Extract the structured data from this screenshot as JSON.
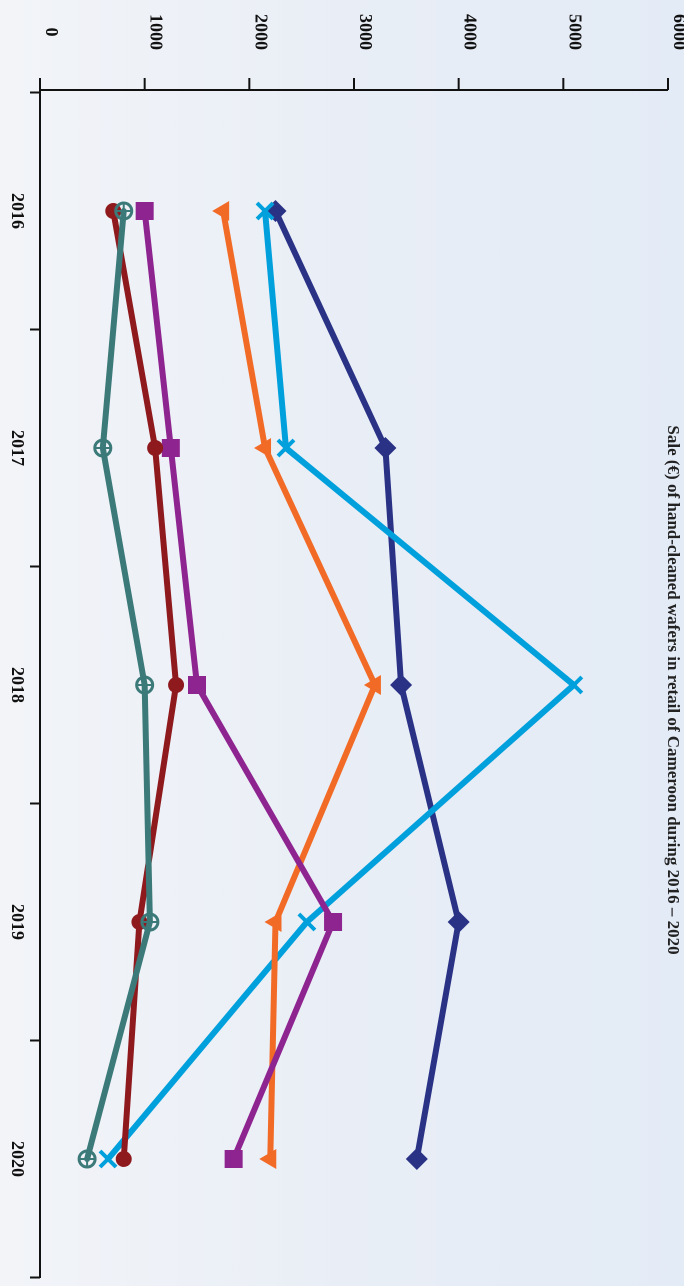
{
  "chart_data": {
    "type": "line",
    "title": "Sale (€) of hand-cleaned wafers in retail of Cameroon during 2016 – 2020",
    "xlabel": "",
    "ylabel": "",
    "categories": [
      "2016",
      "2017",
      "2018",
      "2019",
      "2020"
    ],
    "y_ticks": [
      "0",
      "1000",
      "2000",
      "3000",
      "4000",
      "5000",
      "6000"
    ],
    "ylim": [
      0,
      6000
    ],
    "grid": false,
    "legend": "none",
    "series": [
      {
        "color": "#2a3286",
        "marker": "diamond",
        "values": [
          2250,
          3300,
          3450,
          4000,
          3600
        ]
      },
      {
        "color": "#00a0dc",
        "marker": "x",
        "values": [
          2150,
          2350,
          5100,
          2550,
          650
        ]
      },
      {
        "color": "#f26b26",
        "marker": "triangle",
        "values": [
          1750,
          2150,
          3200,
          2250,
          2200
        ]
      },
      {
        "color": "#8e2490",
        "marker": "square",
        "values": [
          1000,
          1250,
          1500,
          2800,
          1850
        ]
      },
      {
        "color": "#8e1a1e",
        "marker": "circle",
        "values": [
          700,
          1100,
          1300,
          950,
          800
        ]
      },
      {
        "color": "#3c7a7a",
        "marker": "circle-open",
        "values": [
          800,
          600,
          1000,
          1050,
          450
        ]
      }
    ]
  }
}
